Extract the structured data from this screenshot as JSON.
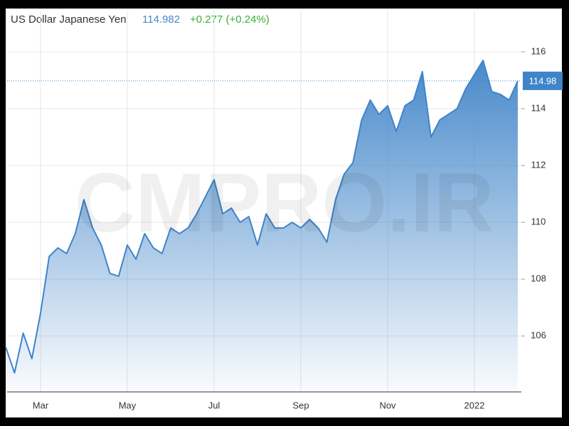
{
  "chart_data": {
    "type": "area",
    "title": "US Dollar Japanese Yen",
    "price": "114.982",
    "change": "+0.277 (+0.24%)",
    "watermark": "CMPRO.IR",
    "color": "#3f84c8",
    "categories": [
      null,
      null,
      null,
      null,
      "Mar",
      null,
      null,
      null,
      null,
      null,
      null,
      null,
      null,
      null,
      "May",
      null,
      null,
      null,
      null,
      null,
      null,
      null,
      null,
      null,
      "Jul",
      null,
      null,
      null,
      null,
      null,
      null,
      null,
      null,
      null,
      "Sep",
      null,
      null,
      null,
      null,
      null,
      null,
      null,
      null,
      null,
      "Nov",
      null,
      null,
      null,
      null,
      null,
      null,
      null,
      null,
      null,
      "2022",
      null,
      null,
      null,
      null,
      null
    ],
    "values": [
      105.6,
      104.7,
      106.1,
      105.2,
      106.8,
      108.8,
      109.1,
      108.9,
      109.6,
      110.8,
      109.8,
      109.2,
      108.2,
      108.1,
      109.2,
      108.7,
      109.6,
      109.1,
      108.9,
      109.8,
      109.6,
      109.8,
      110.3,
      110.9,
      111.5,
      110.3,
      110.5,
      110.0,
      110.2,
      109.2,
      110.3,
      109.8,
      109.8,
      110.0,
      109.8,
      110.1,
      109.8,
      109.3,
      110.8,
      111.7,
      112.1,
      113.6,
      114.3,
      113.8,
      114.1,
      113.2,
      114.1,
      114.3,
      115.3,
      113.0,
      113.6,
      113.8,
      114.0,
      114.7,
      115.2,
      115.7,
      114.6,
      114.5,
      114.3,
      114.98
    ],
    "ylim": [
      104.03,
      117.45
    ],
    "yticks": [
      106,
      108,
      110,
      112,
      114,
      116
    ],
    "reference_line": {
      "value": 114.98,
      "label": "114.98"
    },
    "grid": true
  }
}
